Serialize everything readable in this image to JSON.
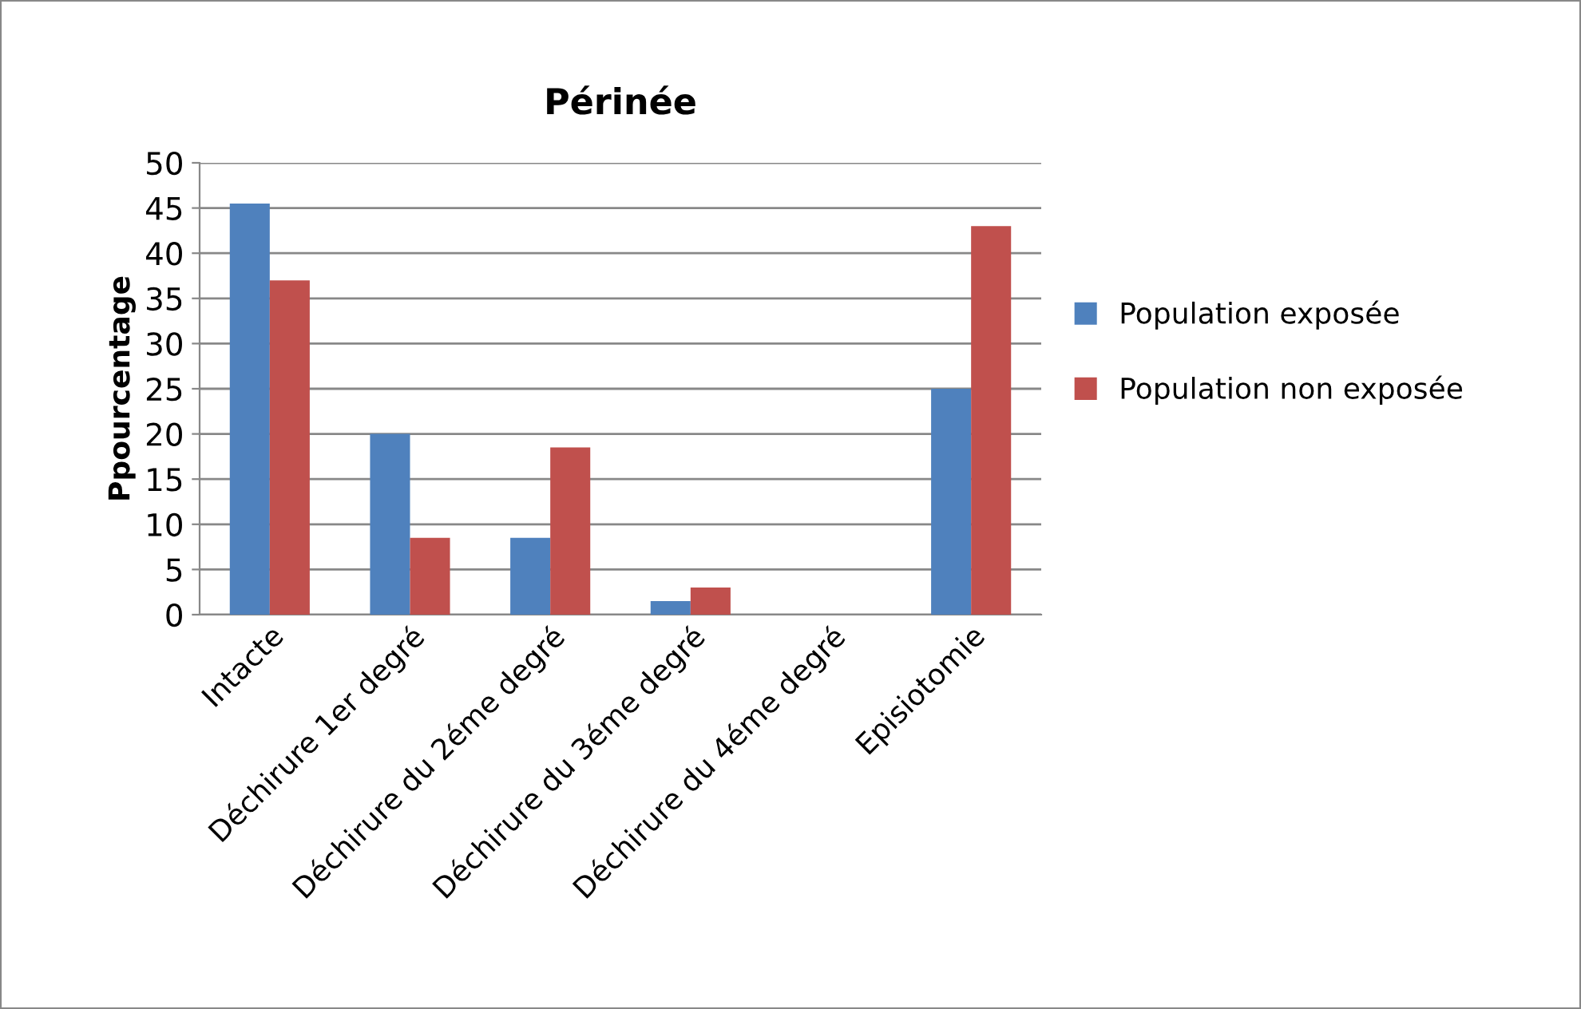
{
  "chart_data": {
    "type": "bar",
    "title": "Périnée",
    "ylabel": "Ppourcentage",
    "categories": [
      "Intacte",
      "Déchirure 1er degré",
      "Déchirure du 2éme degré",
      "Déchirure du 3éme degré",
      "Déchirure du 4éme degré",
      "Episiotomie"
    ],
    "series": [
      {
        "name": "Population exposée",
        "color": "#4f81bd",
        "values": [
          45.5,
          20,
          8.5,
          1.5,
          0,
          25
        ]
      },
      {
        "name": "Population non exposée",
        "color": "#c0504d",
        "values": [
          37,
          8.5,
          18.5,
          3,
          0,
          43
        ]
      }
    ],
    "ylim": [
      0,
      50
    ],
    "yticks": [
      0,
      5,
      10,
      15,
      20,
      25,
      30,
      35,
      40,
      45,
      50
    ],
    "grid": "y",
    "legend": "right"
  }
}
